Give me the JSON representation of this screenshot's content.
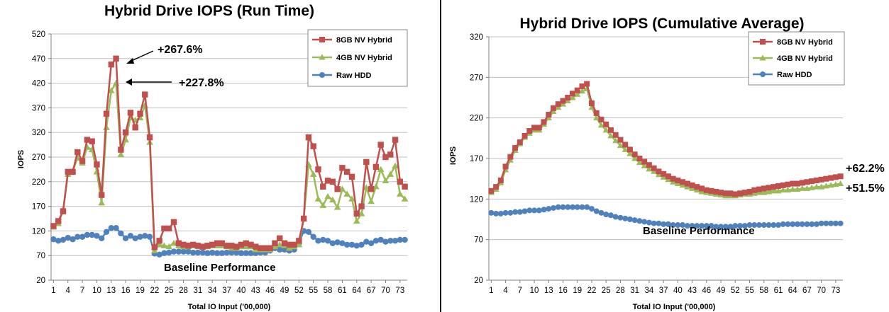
{
  "chart_data": [
    {
      "type": "line",
      "title": "Hybrid Drive IOPS (Run Time)",
      "xlabel": "Total IO Input ('00,000)",
      "ylabel": "IOPS",
      "ylim": [
        20,
        520
      ],
      "yticks": [
        20,
        70,
        120,
        170,
        220,
        270,
        320,
        370,
        420,
        470,
        520
      ],
      "xticks": [
        1,
        4,
        7,
        10,
        13,
        16,
        19,
        22,
        25,
        28,
        31,
        34,
        37,
        40,
        43,
        46,
        49,
        52,
        55,
        58,
        61,
        64,
        67,
        70,
        73
      ],
      "grid": "horizontal",
      "legend_position": "top-right",
      "series": [
        {
          "name": "8GB NV Hybrid",
          "color": "#C0504D",
          "marker": "square",
          "values": [
            130,
            140,
            160,
            240,
            240,
            280,
            262,
            305,
            302,
            255,
            193,
            358,
            458,
            470,
            285,
            320,
            360,
            330,
            358,
            397,
            310,
            87,
            100,
            125,
            125,
            138,
            95,
            92,
            90,
            92,
            90,
            88,
            90,
            92,
            95,
            95,
            90,
            90,
            88,
            92,
            95,
            92,
            88,
            85,
            85,
            85,
            95,
            105,
            95,
            92,
            92,
            100,
            145,
            310,
            292,
            245,
            210,
            222,
            220,
            205,
            248,
            240,
            230,
            155,
            170,
            260,
            205,
            250,
            295,
            270,
            275,
            305,
            220,
            210
          ]
        },
        {
          "name": "4GB NV Hybrid",
          "color": "#9BBB59",
          "marker": "triangle",
          "values": [
            128,
            135,
            162,
            235,
            242,
            268,
            258,
            290,
            285,
            240,
            177,
            330,
            405,
            420,
            275,
            305,
            350,
            345,
            350,
            375,
            300,
            80,
            92,
            90,
            88,
            95,
            90,
            88,
            88,
            90,
            88,
            87,
            88,
            90,
            90,
            90,
            88,
            85,
            85,
            88,
            88,
            88,
            82,
            82,
            82,
            82,
            88,
            92,
            90,
            85,
            88,
            92,
            145,
            255,
            235,
            185,
            172,
            190,
            183,
            168,
            205,
            195,
            185,
            140,
            155,
            208,
            180,
            210,
            245,
            222,
            235,
            252,
            195,
            185
          ]
        },
        {
          "name": "Raw HDD",
          "color": "#4F81BD",
          "marker": "circle",
          "values": [
            103,
            100,
            102,
            106,
            103,
            108,
            108,
            112,
            112,
            110,
            105,
            118,
            126,
            126,
            115,
            105,
            110,
            105,
            108,
            110,
            108,
            74,
            72,
            75,
            76,
            78,
            78,
            78,
            78,
            76,
            76,
            76,
            75,
            76,
            75,
            75,
            76,
            76,
            76,
            75,
            75,
            75,
            75,
            76,
            76,
            80,
            85,
            82,
            82,
            80,
            82,
            95,
            120,
            118,
            108,
            100,
            102,
            100,
            95,
            97,
            95,
            92,
            92,
            90,
            92,
            98,
            95,
            100,
            102,
            98,
            100,
            100,
            102,
            102
          ]
        }
      ],
      "annotations": [
        "+267.6%",
        "+227.8%",
        "Baseline Performance"
      ]
    },
    {
      "type": "line",
      "title": "Hybrid Drive IOPS (Cumulative Average)",
      "xlabel": "Total IO Input ('00,000)",
      "ylabel": "IOPS",
      "ylim": [
        20,
        320
      ],
      "yticks": [
        20,
        70,
        120,
        170,
        220,
        270,
        320
      ],
      "xticks": [
        1,
        4,
        7,
        10,
        13,
        16,
        19,
        22,
        25,
        28,
        31,
        34,
        37,
        40,
        43,
        46,
        49,
        52,
        55,
        58,
        61,
        64,
        67,
        70,
        73
      ],
      "grid": "horizontal",
      "legend_position": "top-right",
      "series": [
        {
          "name": "8GB NV Hybrid",
          "color": "#C0504D",
          "marker": "square",
          "values": [
            130,
            135,
            143,
            160,
            172,
            183,
            190,
            198,
            204,
            208,
            208,
            215,
            224,
            232,
            237,
            241,
            245,
            250,
            254,
            259,
            262,
            238,
            226,
            218,
            212,
            205,
            199,
            193,
            187,
            181,
            175,
            170,
            166,
            162,
            158,
            154,
            151,
            148,
            145,
            143,
            141,
            139,
            137,
            135,
            133,
            131,
            130,
            129,
            128,
            127,
            127,
            126,
            127,
            128,
            129,
            131,
            132,
            133,
            134,
            135,
            136,
            137,
            138,
            139,
            139,
            140,
            141,
            142,
            143,
            144,
            145,
            146,
            147,
            148
          ]
        },
        {
          "name": "4GB NV Hybrid",
          "color": "#9BBB59",
          "marker": "triangle",
          "values": [
            128,
            132,
            140,
            156,
            168,
            180,
            188,
            196,
            201,
            205,
            205,
            212,
            220,
            228,
            233,
            237,
            241,
            245,
            249,
            253,
            256,
            233,
            220,
            211,
            205,
            198,
            192,
            186,
            181,
            176,
            170,
            165,
            161,
            157,
            154,
            150,
            147,
            144,
            141,
            139,
            137,
            135,
            133,
            131,
            129,
            128,
            127,
            126,
            125,
            124,
            124,
            124,
            125,
            126,
            126,
            127,
            128,
            128,
            129,
            130,
            130,
            131,
            131,
            132,
            132,
            133,
            133,
            134,
            135,
            135,
            136,
            137,
            138,
            139
          ]
        },
        {
          "name": "Raw HDD",
          "color": "#4F81BD",
          "marker": "circle",
          "values": [
            103,
            102,
            102,
            103,
            103,
            104,
            104,
            105,
            106,
            106,
            106,
            107,
            108,
            109,
            110,
            110,
            110,
            110,
            110,
            110,
            110,
            108,
            105,
            103,
            101,
            100,
            98,
            97,
            96,
            95,
            94,
            93,
            92,
            91,
            90,
            90,
            89,
            89,
            88,
            88,
            88,
            87,
            87,
            87,
            87,
            87,
            87,
            86,
            86,
            86,
            86,
            87,
            87,
            87,
            88,
            88,
            88,
            88,
            88,
            88,
            88,
            89,
            89,
            89,
            89,
            89,
            89,
            89,
            89,
            90,
            90,
            90,
            90,
            90
          ]
        }
      ],
      "annotations": [
        "+62.2%",
        "+51.5%",
        "Baseline Performance"
      ]
    }
  ]
}
